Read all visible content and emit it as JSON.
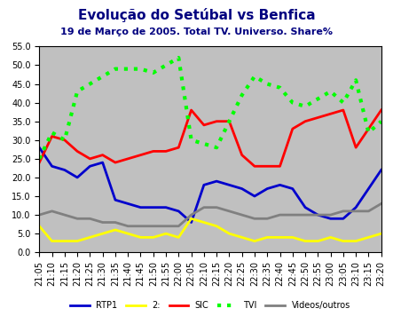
{
  "chart_data": {
    "type": "line",
    "title": "Evolução do Setúbal vs Benfica",
    "subtitle": "19 de Março de 2005. Total TV. Universo. Share%",
    "categories": [
      "21:05",
      "21:10",
      "21:15",
      "21:20",
      "21:25",
      "21:30",
      "21:35",
      "21:40",
      "21:45",
      "21:50",
      "21:55",
      "22:00",
      "22:05",
      "22:10",
      "22:15",
      "22:20",
      "22:25",
      "22:30",
      "22:35",
      "22:40",
      "22:45",
      "22:50",
      "22:55",
      "23:00",
      "23:05",
      "23:10",
      "23:15",
      "23:20"
    ],
    "series": [
      {
        "name": "RTP1",
        "color": "#0000CC",
        "line_style": "solid",
        "values": [
          28,
          23,
          22,
          20,
          23,
          24,
          14,
          13,
          12,
          12,
          12,
          11,
          8,
          18,
          19,
          18,
          17,
          15,
          17,
          18,
          17,
          12,
          10,
          9,
          9,
          12,
          17,
          22
        ]
      },
      {
        "name": "2:",
        "color": "#FFFF00",
        "line_style": "solid",
        "values": [
          7,
          3,
          3,
          3,
          4,
          5,
          6,
          5,
          4,
          4,
          5,
          4,
          9,
          8,
          7,
          5,
          4,
          3,
          4,
          4,
          4,
          3,
          3,
          4,
          3,
          3,
          4,
          5
        ]
      },
      {
        "name": "SIC",
        "color": "#FF0000",
        "line_style": "solid",
        "values": [
          24,
          31,
          30,
          27,
          25,
          26,
          24,
          25,
          26,
          27,
          27,
          28,
          38,
          34,
          35,
          35,
          26,
          23,
          23,
          23,
          33,
          35,
          36,
          37,
          38,
          28,
          33,
          38
        ]
      },
      {
        "name": "TVI",
        "color": "#00FF00",
        "line_style": "dotted",
        "values": [
          25,
          32,
          30,
          43,
          45,
          47,
          49,
          49,
          49,
          48,
          50,
          52,
          30,
          29,
          28,
          35,
          42,
          47,
          45,
          44,
          40,
          39,
          41,
          43,
          40,
          46,
          32,
          35
        ]
      },
      {
        "name": "Videos/outros",
        "color": "#808080",
        "line_style": "solid",
        "values": [
          10,
          11,
          10,
          9,
          9,
          8,
          8,
          7,
          7,
          7,
          7,
          7,
          10,
          12,
          12,
          11,
          10,
          9,
          9,
          10,
          10,
          10,
          10,
          10,
          11,
          11,
          11,
          13
        ]
      }
    ],
    "ylim": [
      0,
      55
    ],
    "yticks": [
      {
        "value": 0,
        "label": "0.0"
      },
      {
        "value": 5,
        "label": "5.0"
      },
      {
        "value": 10,
        "label": "10.0"
      },
      {
        "value": 15,
        "label": "15.0"
      },
      {
        "value": 20,
        "label": "20.0"
      },
      {
        "value": 25,
        "label": "25.0"
      },
      {
        "value": 30,
        "label": "30.0"
      },
      {
        "value": 35,
        "label": "35.0"
      },
      {
        "value": 40,
        "label": "40.0"
      },
      {
        "value": 45,
        "label": "45.0"
      },
      {
        "value": 50,
        "label": "50.0"
      },
      {
        "value": 55,
        "label": "55.0"
      }
    ],
    "grid": false,
    "legend": "bottom"
  }
}
